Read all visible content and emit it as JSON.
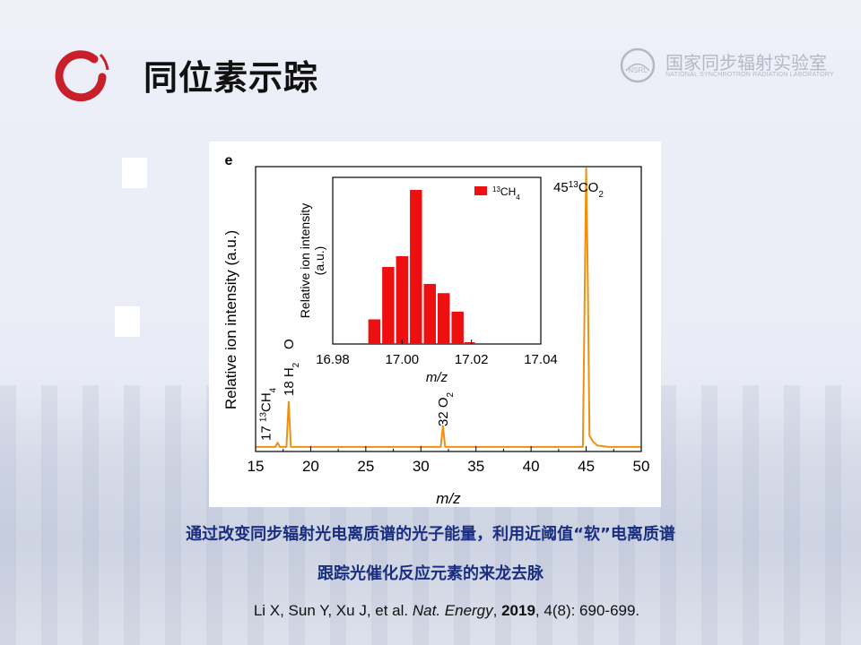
{
  "title": "同位素示踪",
  "lab": {
    "name_cn": "国家同步辐射实验室",
    "name_en": "NATIONAL SYNCHROTRON RADIATION LABORATORY",
    "badge": "NSRL"
  },
  "colors": {
    "logo_red": "#c8202a",
    "caption_blue": "#1a2e80",
    "main_series": "#f09010",
    "inset_bars": "#ee1010"
  },
  "caption": {
    "line1": "通过改变同步辐射光电离质谱的光子能量，利用近阈值“软”电离质谱",
    "line2": "跟踪光催化反应元素的来龙去脉"
  },
  "reference": {
    "authors": "Li X, Sun Y, Xu J, et al.",
    "journal": "Nat. Energy",
    "year": "2019",
    "rest": ", 4(8): 690-699."
  },
  "chart_data": [
    {
      "type": "line",
      "panel_label": "e",
      "xlabel": "m/z",
      "ylabel": "Relative ion intensity (a.u.)",
      "xlim": [
        15,
        50
      ],
      "x_ticks": [
        15,
        20,
        25,
        30,
        35,
        40,
        45,
        50
      ],
      "series": [
        {
          "points": [
            [
              15,
              0.01
            ],
            [
              16.8,
              0.01
            ],
            [
              17,
              0.025
            ],
            [
              17.2,
              0.01
            ],
            [
              17.8,
              0.01
            ],
            [
              18,
              0.17
            ],
            [
              18.2,
              0.01
            ],
            [
              31.8,
              0.01
            ],
            [
              32,
              0.085
            ],
            [
              32.2,
              0.01
            ],
            [
              44.7,
              0.01
            ],
            [
              44.85,
              0.5
            ],
            [
              45,
              1.0
            ],
            [
              45.15,
              0.6
            ],
            [
              45.3,
              0.05
            ],
            [
              45.6,
              0.03
            ],
            [
              46,
              0.015
            ],
            [
              47,
              0.01
            ],
            [
              50,
              0.01
            ]
          ]
        }
      ],
      "annotations": [
        {
          "x": 17,
          "text": "17 ¹³CH₄"
        },
        {
          "x": 18,
          "text": "18 H₂O"
        },
        {
          "x": 32,
          "text": "32 O₂"
        },
        {
          "x": 45,
          "text": "45¹³CO₂"
        }
      ]
    },
    {
      "type": "bar",
      "xlabel": "m/z",
      "ylabel": "Relative ion intensity (a.u.)",
      "xlim": [
        16.98,
        17.04
      ],
      "x_ticks": [
        "16.98",
        "17.00",
        "17.02",
        "17.04"
      ],
      "legend": "¹³CH₄",
      "x": [
        16.992,
        16.996,
        17.0,
        17.004,
        17.008,
        17.012,
        17.016
      ],
      "values": [
        0.16,
        0.5,
        0.57,
        1.0,
        0.39,
        0.33,
        0.21
      ]
    }
  ]
}
